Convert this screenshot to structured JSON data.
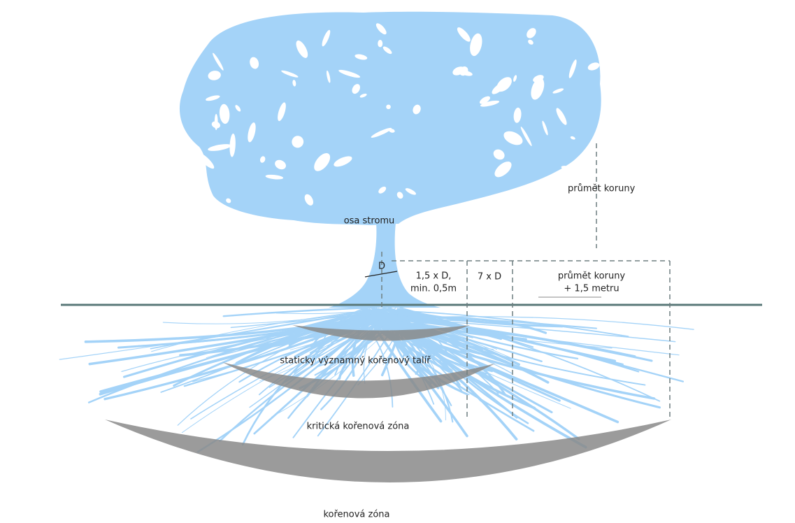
{
  "labels": {
    "crown_projection": "průmět koruny",
    "tree_axis": "osa stromu",
    "diameter": "D",
    "zone_1": [
      "1,5 x D,",
      "min. 0,5m"
    ],
    "zone_2": "7 x D",
    "zone_3": [
      "průmět koruny",
      "+ 1,5 metru"
    ],
    "root_plate": "staticky významný kořenový talíř",
    "critical_root_zone": "kritická kořenová zóna",
    "root_zone": "kořenová zóna"
  }
}
